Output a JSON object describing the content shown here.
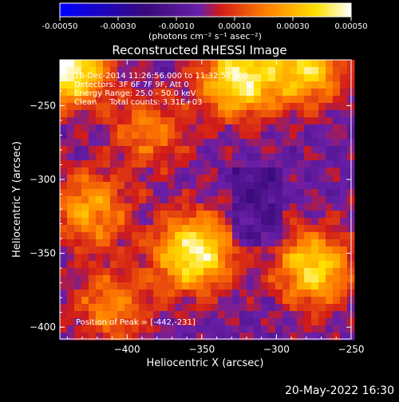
{
  "chart_data": {
    "type": "heatmap",
    "title": "Reconstructed RHESSI Image",
    "xlabel": "Heliocentric X (arcsec)",
    "ylabel": "Heliocentric Y (arcsec)",
    "xlim": [
      -445,
      -250
    ],
    "ylim": [
      -408,
      -219
    ],
    "xticks": [
      -400,
      -350,
      -300,
      -250
    ],
    "yticks": [
      -250,
      -300,
      -350,
      -400
    ],
    "colorbar": {
      "min": -0.0005,
      "max": 0.0005,
      "ticks": [
        "-0.00050",
        "-0.00030",
        "-0.00010",
        "0.00010",
        "0.00030",
        "0.00050"
      ],
      "units": "(photons cm⁻² s⁻¹ asec⁻²)",
      "colors": [
        "#0000ff",
        "#3a0a7a",
        "#6a1fa8",
        "#d01a1a",
        "#ff7a00",
        "#ffe000",
        "#ffffff"
      ]
    },
    "annotations": [
      "16-Dec-2014 11:26:56.000 to 11:32:56.000",
      "Detectors: 3F 6F 7F 9F, Att 0",
      "Energy Range: 25.0 - 50.0 keV",
      "Clean     Total counts: 3.31E+03"
    ],
    "peak_label": "Position of Peak = [-442,-231]",
    "sources": [
      {
        "x": -440,
        "y": -224,
        "intensity": 1.0
      },
      {
        "x": -325,
        "y": -232,
        "intensity": 0.85
      },
      {
        "x": -280,
        "y": -225,
        "intensity": 0.7
      },
      {
        "x": -355,
        "y": -350,
        "intensity": 0.9
      },
      {
        "x": -275,
        "y": -360,
        "intensity": 0.75
      },
      {
        "x": -425,
        "y": -320,
        "intensity": 0.55
      },
      {
        "x": -385,
        "y": -268,
        "intensity": 0.4
      },
      {
        "x": -410,
        "y": -385,
        "intensity": 0.45
      }
    ]
  },
  "footer": {
    "date": "20-May-2022 16:30"
  }
}
